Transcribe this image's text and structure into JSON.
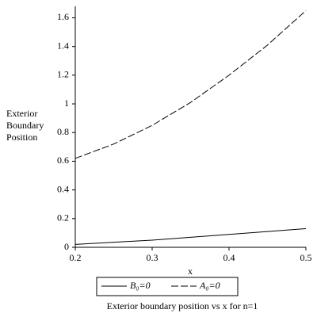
{
  "chart_data": {
    "type": "line",
    "y_label": "Exterior Boundary Position",
    "x_label": "x",
    "caption": "Exterior boundary position vs x for n=1",
    "x": [
      0.2,
      0.25,
      0.3,
      0.35,
      0.4,
      0.45,
      0.5
    ],
    "series": [
      {
        "name": "B₀=0",
        "color": "#000000",
        "dash": "solid",
        "values": [
          0.02,
          0.035,
          0.05,
          0.07,
          0.09,
          0.11,
          0.13
        ]
      },
      {
        "name": "A₀=0",
        "color": "#000000",
        "dash": "dashed",
        "values": [
          0.62,
          0.72,
          0.85,
          1.01,
          1.2,
          1.41,
          1.65
        ]
      }
    ],
    "xlim": [
      0.2,
      0.5
    ],
    "xticks": [
      0.2,
      0.3,
      0.4,
      0.5
    ],
    "ylim": [
      0,
      1.68
    ],
    "yticks": [
      0,
      0.2,
      0.4,
      0.6,
      0.8,
      1,
      1.2,
      1.4,
      1.6
    ],
    "legend": "bottom"
  }
}
